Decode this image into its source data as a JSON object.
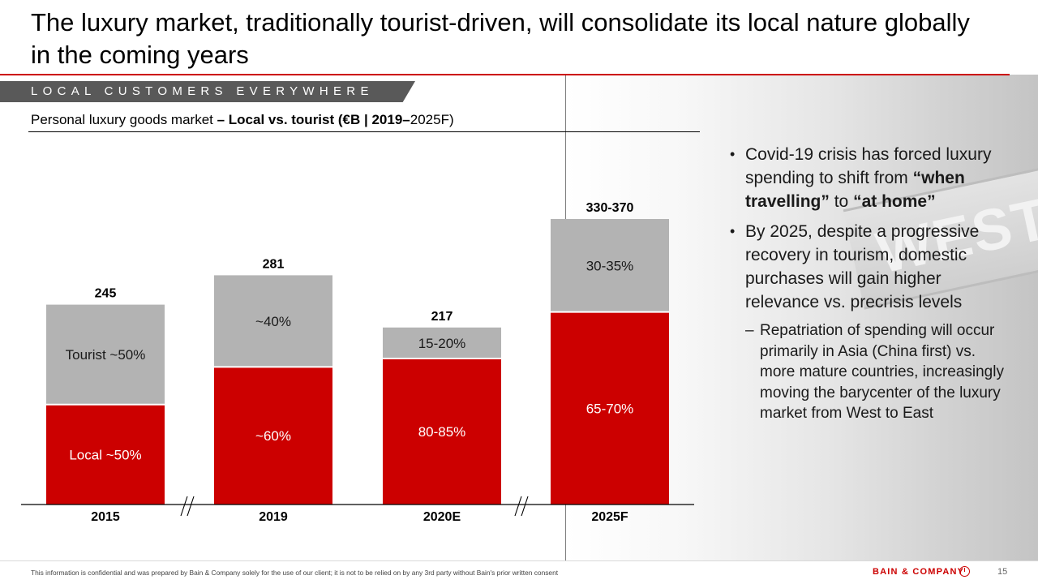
{
  "title": "The luxury market, traditionally tourist-driven, will consolidate its local nature globally in the coming years",
  "section_tag": "LOCAL CUSTOMERS EVERYWHERE",
  "subtitle": {
    "part1": "Personal luxury goods market ",
    "part2": "– Local vs. tourist (€B | 2019–",
    "part3": "2025F)"
  },
  "colors": {
    "local": "#cc0000",
    "tourist": "#b3b3b3",
    "accent": "#cc0000"
  },
  "chart_data": {
    "type": "bar",
    "stacked": true,
    "categories": [
      "2015",
      "2019",
      "2020E",
      "2025F"
    ],
    "totals": [
      245,
      281,
      217,
      350
    ],
    "total_labels": [
      "245",
      "281",
      "217",
      "330-370"
    ],
    "series": [
      {
        "name": "Local",
        "values": [
          122.5,
          168.6,
          179,
          236
        ],
        "labels": [
          "Local ~50%",
          "~60%",
          "80-85%",
          "65-70%"
        ]
      },
      {
        "name": "Tourist",
        "values": [
          122.5,
          112.4,
          38,
          114
        ],
        "labels": [
          "Tourist ~50%",
          "~40%",
          "15-20%",
          "30-35%"
        ]
      }
    ],
    "axis_breaks": [
      "between 2015 and 2019",
      "between 2020E and 2025F"
    ],
    "break_symbol": "//",
    "ylim": [
      0,
      370
    ]
  },
  "bullets": [
    {
      "segments": [
        {
          "text": "Covid-19 crisis has forced luxury spending to shift from ",
          "bold": false
        },
        {
          "text": "“when travelling”",
          "bold": true
        },
        {
          "text": " to ",
          "bold": false
        },
        {
          "text": "“at home”",
          "bold": true
        }
      ]
    },
    {
      "segments": [
        {
          "text": "By 2025, despite a progressive recovery in tourism, domestic purchases will gain higher relevance vs. precrisis levels",
          "bold": false
        }
      ],
      "sub": "Repatriation of spending will occur primarily in Asia (China first) vs. more mature countries, increasingly moving the barycenter of the luxury market from West to East"
    }
  ],
  "background_sign_text": "WEST",
  "footer_note": "This information is confidential and was prepared by Bain & Company solely for the use of our client; it is not to be relied on by any 3rd party without Bain's prior written consent",
  "logo_text": "BAIN & COMPANY",
  "page_number": "15"
}
